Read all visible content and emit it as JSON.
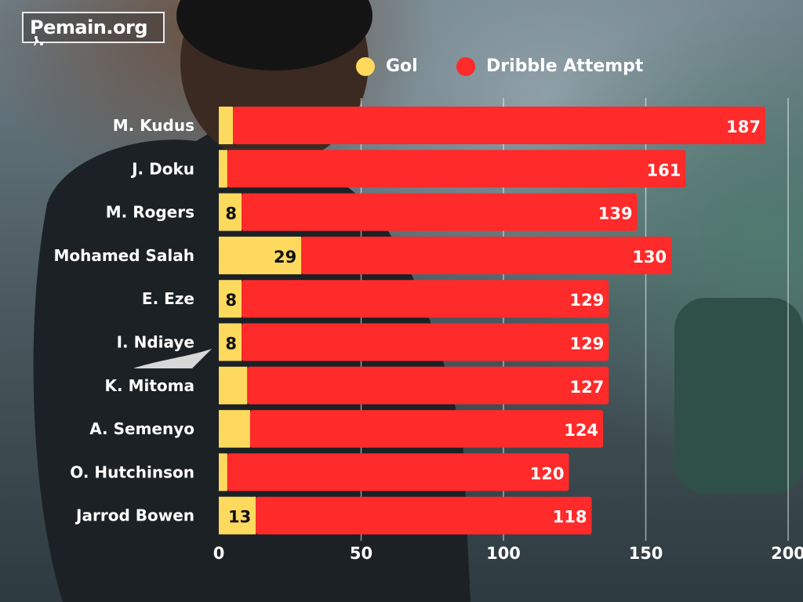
{
  "logo": {
    "text": "Pemain.org"
  },
  "colors": {
    "gol": "#fdd95e",
    "dribble": "#ff2a2a"
  },
  "chart_data": {
    "type": "bar",
    "orientation": "horizontal",
    "stacked": true,
    "categories": [
      "M. Kudus",
      "J. Doku",
      "M. Rogers",
      "Mohamed Salah",
      "E. Eze",
      "I. Ndiaye",
      "K. Mitoma",
      "A. Semenyo",
      "O. Hutchinson",
      "Jarrod Bowen"
    ],
    "series": [
      {
        "name": "Gol",
        "values": [
          5,
          3,
          8,
          29,
          8,
          8,
          10,
          11,
          3,
          13
        ],
        "labels": [
          "",
          "",
          "8",
          "29",
          "8",
          "8",
          "",
          "",
          "",
          "13"
        ]
      },
      {
        "name": "Dribble Attempt",
        "values": [
          187,
          161,
          139,
          130,
          129,
          129,
          127,
          124,
          120,
          118
        ],
        "labels": [
          "187",
          "161",
          "139",
          "130",
          "129",
          "129",
          "127",
          "124",
          "120",
          "118"
        ]
      }
    ],
    "xlim": [
      0,
      200
    ],
    "xticks": [
      "0",
      "50",
      "100",
      "150",
      "200"
    ],
    "grid": true,
    "legend_position": "top"
  }
}
